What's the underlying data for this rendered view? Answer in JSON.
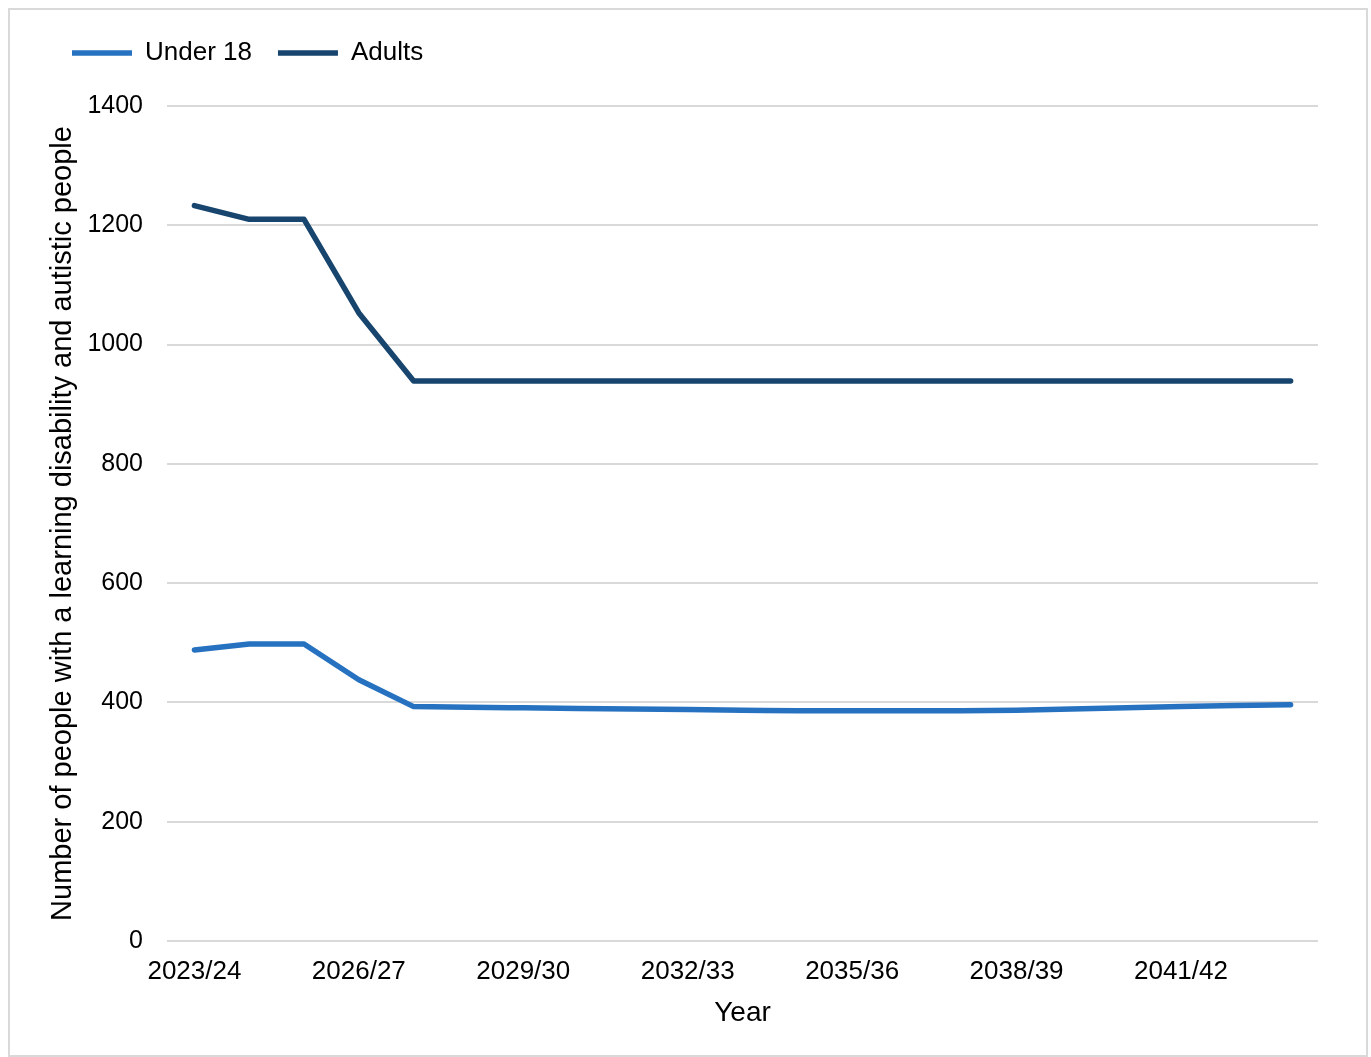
{
  "chart_data": {
    "type": "line",
    "xlabel": "Year",
    "ylabel": "Number of people with a learning disability and autistic people",
    "categories": [
      "2023/24",
      null,
      null,
      "2026/27",
      null,
      null,
      "2029/30",
      null,
      null,
      "2032/33",
      null,
      null,
      "2035/36",
      null,
      null,
      "2038/39",
      null,
      null,
      "2041/42",
      null,
      null
    ],
    "series": [
      {
        "name": "Under 18",
        "color": "#2772c0",
        "values": [
          488,
          498,
          498,
          438,
          393,
          392,
          391,
          390,
          389,
          388,
          387,
          386,
          386,
          386,
          386,
          387,
          389,
          391,
          393,
          395,
          396
        ]
      },
      {
        "name": "Adults",
        "color": "#17456e",
        "values": [
          1233,
          1210,
          1210,
          1053,
          939,
          939,
          939,
          939,
          939,
          939,
          939,
          939,
          939,
          939,
          939,
          939,
          939,
          939,
          939,
          939,
          939
        ]
      }
    ],
    "ylim": [
      0,
      1400
    ],
    "yticks": [
      0,
      200,
      400,
      600,
      800,
      1000,
      1200,
      1400
    ],
    "grid": "y",
    "legend": "top left",
    "marker": "none",
    "line_style": "solid"
  }
}
